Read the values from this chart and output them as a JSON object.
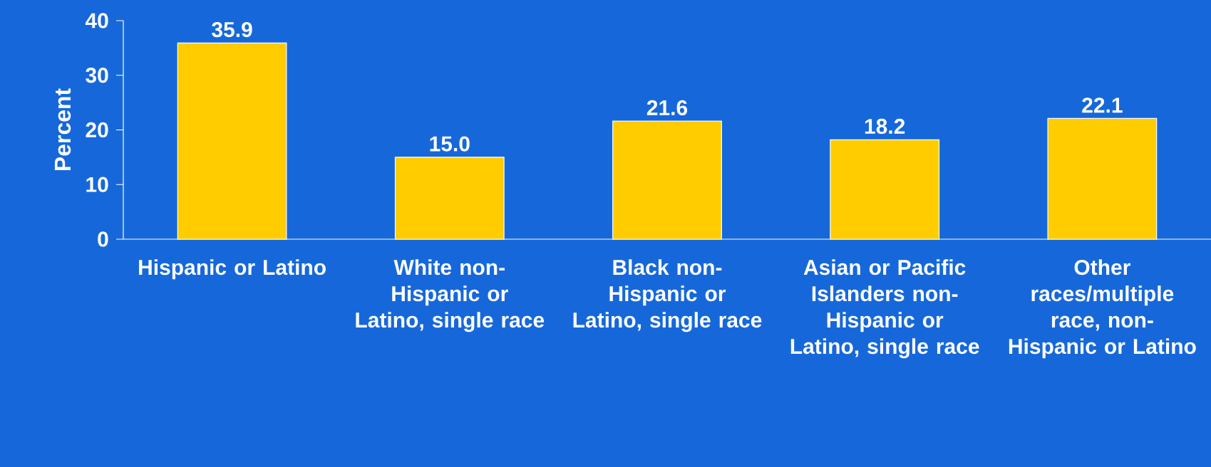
{
  "chart_data": {
    "type": "bar",
    "ylabel": "Percent",
    "categories": [
      "Hispanic or Latino",
      "White non-Hispanic or Latino, single race",
      "Black non-Hispanic or Latino, single race",
      "Asian or Pacific Islanders non-Hispanic or Latino, single race",
      "Other races/multiple race, non-Hispanic or Latino"
    ],
    "values": [
      35.9,
      15.0,
      21.6,
      18.2,
      22.1
    ],
    "color": "#ffcc00",
    "value_labels": [
      "35.9",
      "15.0",
      "21.6",
      "18.2",
      "22.1"
    ],
    "ylim": [
      0,
      40
    ],
    "yticks": [
      0,
      10,
      20,
      30,
      40
    ]
  }
}
